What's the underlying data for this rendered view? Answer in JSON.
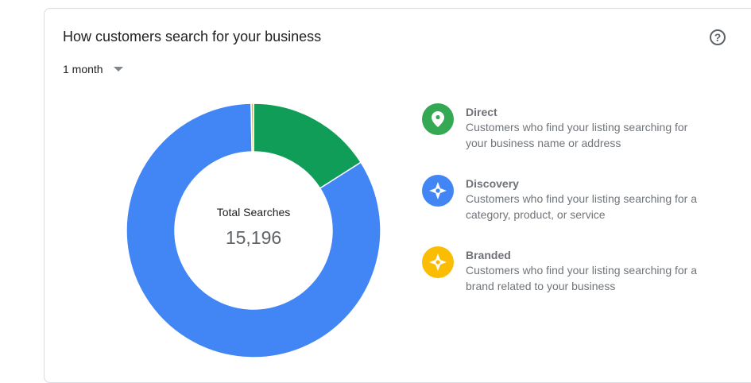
{
  "card": {
    "title": "How customers search for your business",
    "help_icon": "help-circle-icon",
    "period": "1 month"
  },
  "chart_data": {
    "type": "pie",
    "variant": "donut",
    "center_label": "Total Searches",
    "center_value": "15,196",
    "series": [
      {
        "name": "Direct",
        "value": 16.0,
        "color": "#0f9d58"
      },
      {
        "name": "Discovery",
        "value": 83.7,
        "color": "#4285f4"
      },
      {
        "name": "Branded",
        "value": 0.3,
        "color": "#f4b400"
      }
    ]
  },
  "legend": [
    {
      "name": "Direct",
      "description": "Customers who find your listing searching for your business name or address",
      "icon": "map-pin-icon",
      "color": "#34a853"
    },
    {
      "name": "Discovery",
      "description": "Customers who find your listing searching for a category, product, or service",
      "icon": "compass-star-icon",
      "color": "#4285f4"
    },
    {
      "name": "Branded",
      "description": "Customers who find your listing searching for a brand related to your business",
      "icon": "compass-star-icon",
      "color": "#fbbc04"
    }
  ]
}
